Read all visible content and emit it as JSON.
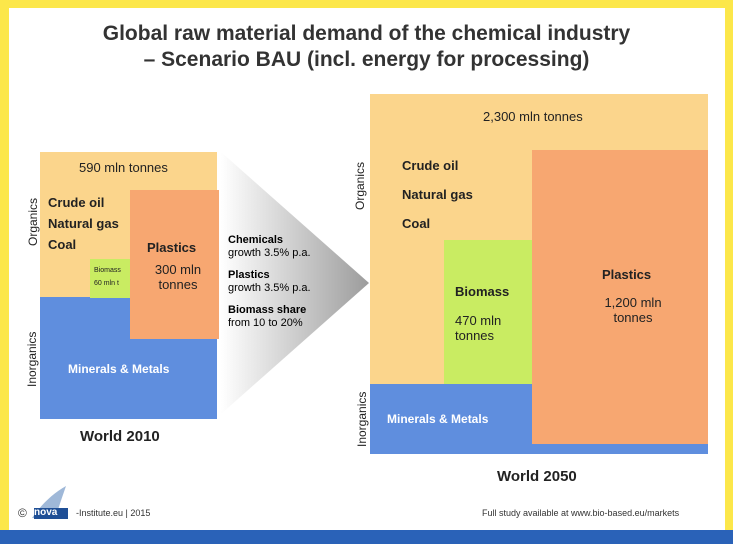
{
  "title": {
    "line1": "Global raw material demand of the chemical industry",
    "line2": "– Scenario BAU (incl. energy for processing)"
  },
  "left": {
    "total": "590 mln tonnes",
    "fossil": [
      "Crude oil",
      "Natural gas",
      "Coal"
    ],
    "plastics_label": "Plastics",
    "plastics_amount": "300 mln tonnes",
    "biomass_label": "Biomass",
    "biomass_amount": "60 mln t",
    "minerals": "Minerals & Metals",
    "organics": "Organics",
    "inorganics": "Inorganics",
    "world": "World 2010"
  },
  "middle": {
    "chem_title": "Chemicals",
    "chem_growth": "growth 3.5% p.a.",
    "plast_title": "Plastics",
    "plast_growth": "growth 3.5% p.a.",
    "bio_title": "Biomass share",
    "bio_range": "from 10 to 20%"
  },
  "right": {
    "total": "2,300 mln tonnes",
    "fossil": [
      "Crude oil",
      "Natural gas",
      "Coal"
    ],
    "biomass_label": "Biomass",
    "biomass_amount": "470 mln tonnes",
    "plastics_label": "Plastics",
    "plastics_amount": "1,200 mln tonnes",
    "minerals": "Minerals & Metals",
    "organics": "Organics",
    "inorganics": "Inorganics",
    "world": "World 2050"
  },
  "footer": {
    "copyright": "©",
    "logo": "nova",
    "credit": "-Institute.eu | 2015",
    "study": "Full study available at www.bio-based.eu/markets"
  }
}
